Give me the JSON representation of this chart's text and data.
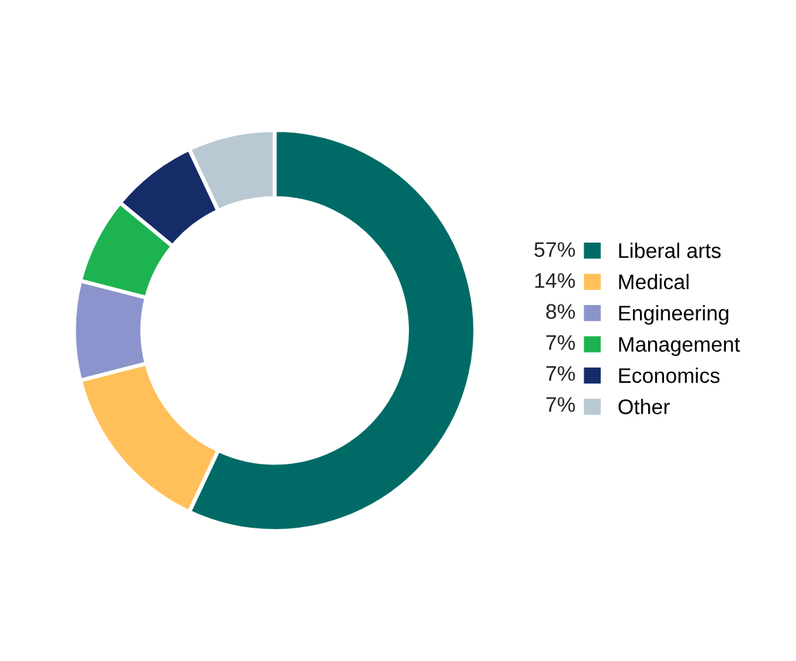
{
  "chart_data": {
    "type": "donut",
    "categories": [
      "Liberal arts",
      "Medical",
      "Engineering",
      "Management",
      "Economics",
      "Other"
    ],
    "values": [
      57,
      14,
      8,
      7,
      7,
      7
    ],
    "colors": [
      "#006b66",
      "#ffc05a",
      "#8b94cc",
      "#1db350",
      "#162c69",
      "#b8c9d3"
    ],
    "value_labels": [
      "57%",
      "14%",
      "8%",
      "7%",
      "7%",
      "7%"
    ],
    "legend": "right"
  }
}
